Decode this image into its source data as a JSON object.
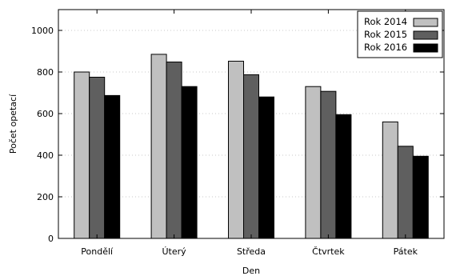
{
  "chart_data": {
    "type": "bar",
    "categories": [
      "Pondělí",
      "Úterý",
      "Středa",
      "Čtvrtek",
      "Pátek"
    ],
    "series": [
      {
        "name": "Rok 2014",
        "values": [
          800,
          885,
          852,
          730,
          560
        ],
        "color": "#c0c0c0"
      },
      {
        "name": "Rok 2015",
        "values": [
          775,
          848,
          787,
          707,
          443
        ],
        "color": "#5f5f5f"
      },
      {
        "name": "Rok 2016",
        "values": [
          687,
          730,
          680,
          595,
          395
        ],
        "color": "#000000"
      }
    ],
    "title": "",
    "xlabel": "Den",
    "ylabel": "Počet opetací",
    "ylim": [
      0,
      1100
    ],
    "yticks": [
      0,
      200,
      400,
      600,
      800,
      1000
    ],
    "grid": true,
    "legend_position": "top-right"
  }
}
